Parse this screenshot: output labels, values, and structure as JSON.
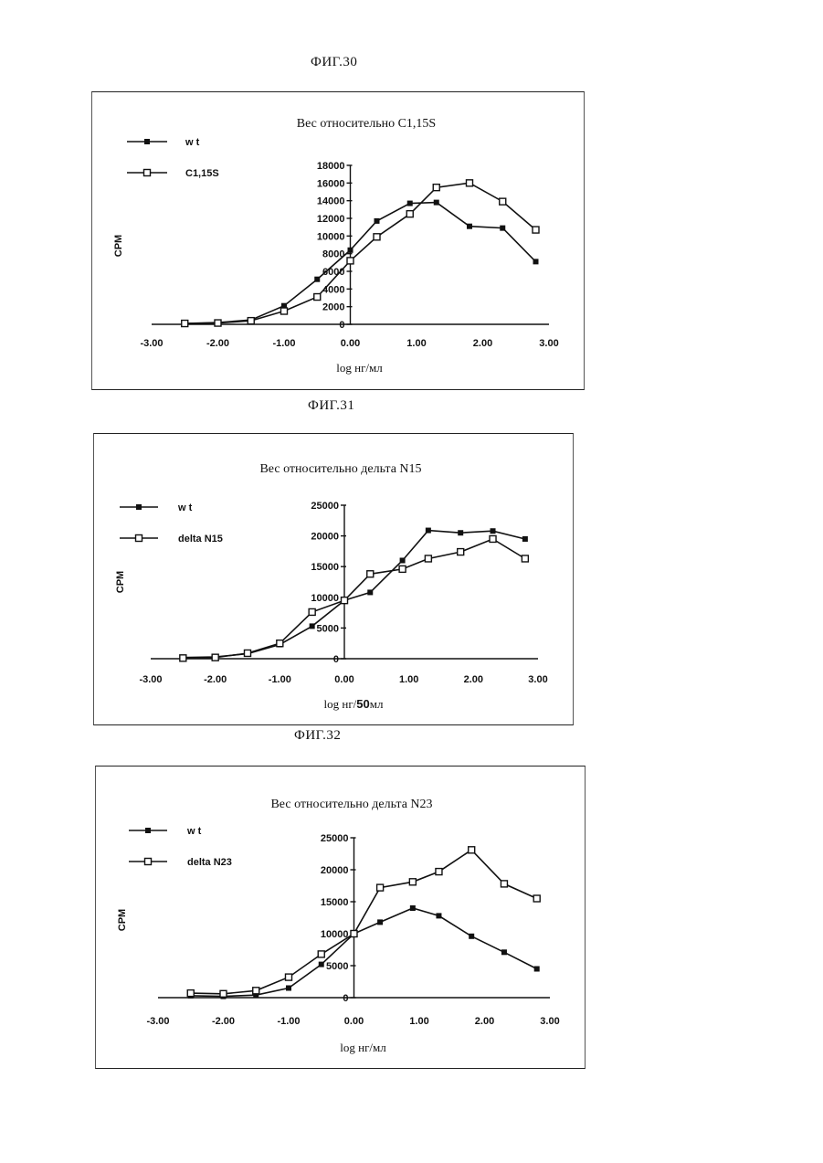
{
  "figures": [
    {
      "label": "ФИГ.30"
    },
    {
      "label": "ФИГ.31"
    },
    {
      "label": "ФИГ.32"
    }
  ],
  "chart_data": [
    {
      "type": "line",
      "title": "Вес относительно C1,15S",
      "xlabel": "log нг/мл",
      "ylabel": "CPM",
      "xlim": [
        -3.0,
        3.0
      ],
      "ylim": [
        0,
        18000
      ],
      "xticks": [
        "-3.00",
        "-2.00",
        "-1.00",
        "0.00",
        "1.00",
        "2.00",
        "3.00"
      ],
      "yticks": [
        "0",
        "2000",
        "4000",
        "6000",
        "8000",
        "10000",
        "12000",
        "14000",
        "16000",
        "18000"
      ],
      "legend_position": "top-left",
      "series": [
        {
          "name": "w t",
          "marker": "filled-square",
          "x": [
            -2.5,
            -2.0,
            -1.5,
            -1.0,
            -0.5,
            0.0,
            0.4,
            0.9,
            1.3,
            1.8,
            2.3,
            2.8
          ],
          "y": [
            100,
            200,
            500,
            2100,
            5100,
            8400,
            11700,
            13700,
            13800,
            11100,
            10900,
            7100
          ]
        },
        {
          "name": "C1,15S",
          "marker": "open-square",
          "x": [
            -2.5,
            -2.0,
            -1.5,
            -1.0,
            -0.5,
            0.0,
            0.4,
            0.9,
            1.3,
            1.8,
            2.3,
            2.8
          ],
          "y": [
            100,
            150,
            400,
            1500,
            3100,
            7200,
            9900,
            12500,
            15500,
            16000,
            13900,
            10700
          ]
        }
      ]
    },
    {
      "type": "line",
      "title": "Вес относительно дельта N15",
      "xlabel": "log нг/",
      "xlabel_bold": "50",
      "xlabel_suffix": "мл",
      "ylabel": "CPM",
      "xlim": [
        -3.0,
        3.0
      ],
      "ylim": [
        0,
        25000
      ],
      "xticks": [
        "-3.00",
        "-2.00",
        "-1.00",
        "0.00",
        "1.00",
        "2.00",
        "3.00"
      ],
      "yticks": [
        "0",
        "5000",
        "10000",
        "15000",
        "20000",
        "25000"
      ],
      "legend_position": "top-left",
      "series": [
        {
          "name": "w t",
          "marker": "filled-square",
          "x": [
            -2.5,
            -2.0,
            -1.5,
            -1.0,
            -0.5,
            0.0,
            0.4,
            0.9,
            1.3,
            1.8,
            2.3,
            2.8
          ],
          "y": [
            200,
            300,
            800,
            2300,
            5300,
            9500,
            10800,
            16000,
            20900,
            20500,
            20800,
            19500
          ]
        },
        {
          "name": "delta N15",
          "marker": "open-square",
          "x": [
            -2.5,
            -2.0,
            -1.5,
            -1.0,
            -0.5,
            0.0,
            0.4,
            0.9,
            1.3,
            1.8,
            2.3,
            2.8
          ],
          "y": [
            100,
            200,
            900,
            2500,
            7600,
            9500,
            13800,
            14600,
            16300,
            17400,
            19500,
            16300
          ]
        }
      ]
    },
    {
      "type": "line",
      "title": "Вес относительно дельта N23",
      "xlabel": "log нг/мл",
      "ylabel": "CPM",
      "xlim": [
        -3.0,
        3.0
      ],
      "ylim": [
        0,
        25000
      ],
      "xticks": [
        "-3.00",
        "-2.00",
        "-1.00",
        "0.00",
        "1.00",
        "2.00",
        "3.00"
      ],
      "yticks": [
        "0",
        "5000",
        "10000",
        "15000",
        "20000",
        "25000"
      ],
      "legend_position": "top-left",
      "series": [
        {
          "name": "w t",
          "marker": "filled-square",
          "x": [
            -2.5,
            -2.0,
            -1.5,
            -1.0,
            -0.5,
            0.0,
            0.4,
            0.9,
            1.3,
            1.8,
            2.3,
            2.8
          ],
          "y": [
            300,
            200,
            400,
            1500,
            5200,
            10000,
            11800,
            14000,
            12800,
            9600,
            7100,
            4500
          ]
        },
        {
          "name": "delta N23",
          "marker": "open-square",
          "x": [
            -2.5,
            -2.0,
            -1.5,
            -1.0,
            -0.5,
            0.0,
            0.4,
            0.9,
            1.3,
            1.8,
            2.3,
            2.8
          ],
          "y": [
            700,
            600,
            1100,
            3200,
            6800,
            10000,
            17200,
            18100,
            19700,
            23100,
            17800,
            15500
          ]
        }
      ]
    }
  ]
}
